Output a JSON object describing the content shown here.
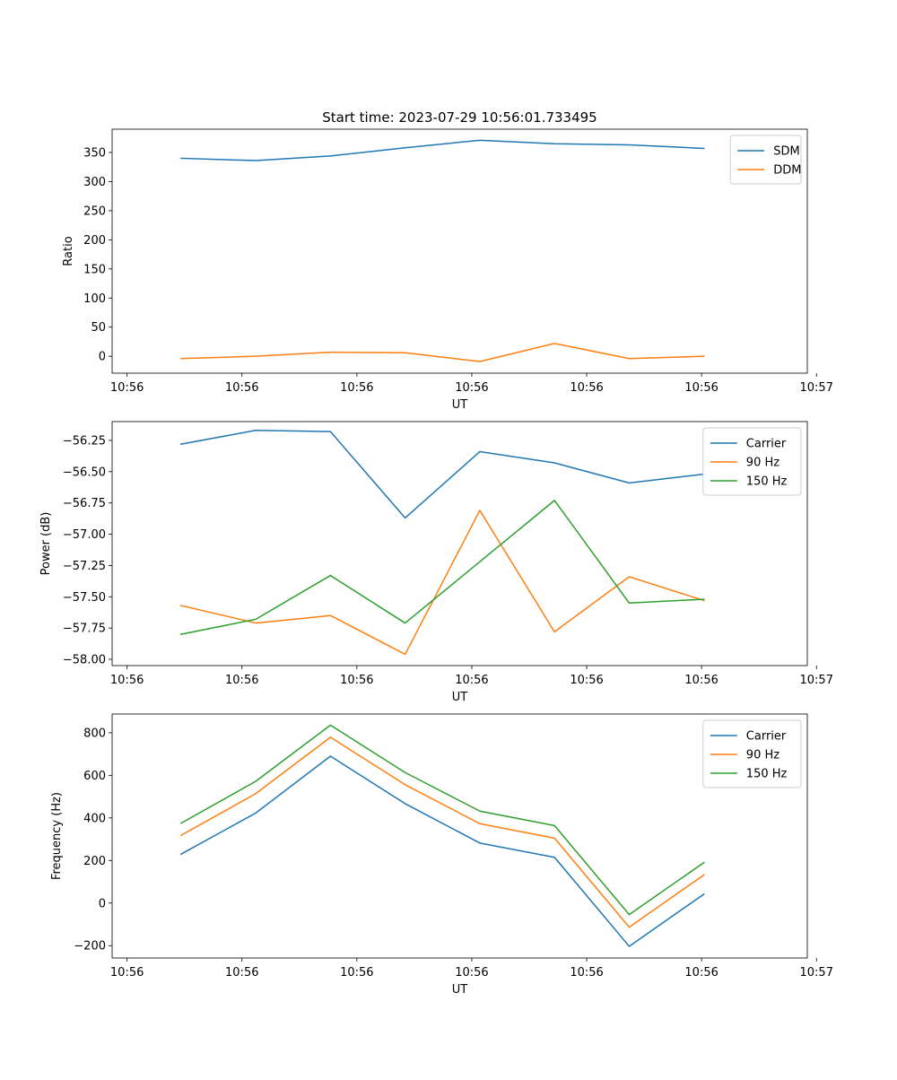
{
  "figure": {
    "title": "Start time: 2023-07-29 10:56:01.733495"
  },
  "colors": {
    "blue": "#1f77b4",
    "orange": "#ff7f0e",
    "green": "#2ca02c"
  },
  "chart_data": [
    {
      "type": "line",
      "title": "Start time: 2023-07-29 10:56:01.733495",
      "xlabel": "UT",
      "ylabel": "Ratio",
      "x": [
        0.85,
        1.5,
        2.15,
        2.8,
        3.45,
        4.1,
        4.75,
        5.4
      ],
      "xlim": [
        0.25,
        6.3
      ],
      "xticks": [
        0.38,
        1.38,
        2.38,
        3.38,
        4.38,
        5.38,
        6.38
      ],
      "xticklabels": [
        "10:56",
        "10:56",
        "10:56",
        "10:56",
        "10:56",
        "10:56",
        "10:57"
      ],
      "ylim": [
        -29,
        390
      ],
      "yticks": [
        0,
        50,
        100,
        150,
        200,
        250,
        300,
        350
      ],
      "yticklabels": [
        "0",
        "50",
        "100",
        "150",
        "200",
        "250",
        "300",
        "350"
      ],
      "legend": "top-right",
      "series": [
        {
          "name": "SDM",
          "color": "#1f77b4",
          "values": [
            340,
            336,
            344,
            358,
            371,
            365,
            363,
            357
          ]
        },
        {
          "name": "DDM",
          "color": "#ff7f0e",
          "values": [
            -4,
            0,
            7,
            6,
            -9,
            22,
            -4,
            0
          ]
        }
      ]
    },
    {
      "type": "line",
      "title": "",
      "xlabel": "UT",
      "ylabel": "Power (dB)",
      "x": [
        0.85,
        1.5,
        2.15,
        2.8,
        3.45,
        4.1,
        4.75,
        5.4
      ],
      "xlim": [
        0.25,
        6.3
      ],
      "xticks": [
        0.38,
        1.38,
        2.38,
        3.38,
        4.38,
        5.38,
        6.38
      ],
      "xticklabels": [
        "10:56",
        "10:56",
        "10:56",
        "10:56",
        "10:56",
        "10:56",
        "10:57"
      ],
      "ylim": [
        -58.05,
        -56.1
      ],
      "yticks": [
        -58.0,
        -57.75,
        -57.5,
        -57.25,
        -57.0,
        -56.75,
        -56.5,
        -56.25
      ],
      "yticklabels": [
        "−58.00",
        "−57.75",
        "−57.50",
        "−57.25",
        "−57.00",
        "−56.75",
        "−56.50",
        "−56.25"
      ],
      "legend": "top-right",
      "series": [
        {
          "name": "Carrier",
          "color": "#1f77b4",
          "values": [
            -56.28,
            -56.17,
            -56.18,
            -56.87,
            -56.34,
            -56.43,
            -56.59,
            -56.52
          ]
        },
        {
          "name": "90 Hz",
          "color": "#ff7f0e",
          "values": [
            -57.57,
            -57.71,
            -57.65,
            -57.96,
            -56.81,
            -57.78,
            -57.34,
            -57.53
          ]
        },
        {
          "name": "150 Hz",
          "color": "#2ca02c",
          "values": [
            -57.8,
            -57.68,
            -57.33,
            -57.71,
            -57.22,
            -56.73,
            -57.55,
            -57.52
          ]
        }
      ]
    },
    {
      "type": "line",
      "title": "",
      "xlabel": "UT",
      "ylabel": "Frequency (Hz)",
      "x": [
        0.85,
        1.5,
        2.15,
        2.8,
        3.45,
        4.1,
        4.75,
        5.4
      ],
      "xlim": [
        0.25,
        6.3
      ],
      "xticks": [
        0.38,
        1.38,
        2.38,
        3.38,
        4.38,
        5.38,
        6.38
      ],
      "xticklabels": [
        "10:56",
        "10:56",
        "10:56",
        "10:56",
        "10:56",
        "10:56",
        "10:57"
      ],
      "ylim": [
        -258,
        888
      ],
      "yticks": [
        -200,
        0,
        200,
        400,
        600,
        800
      ],
      "yticklabels": [
        "−200",
        "0",
        "200",
        "400",
        "600",
        "800"
      ],
      "legend": "top-right",
      "series": [
        {
          "name": "Carrier",
          "color": "#1f77b4",
          "values": [
            230,
            423,
            690,
            467,
            282,
            215,
            -203,
            42
          ]
        },
        {
          "name": "90 Hz",
          "color": "#ff7f0e",
          "values": [
            318,
            514,
            779,
            556,
            373,
            305,
            -113,
            132
          ]
        },
        {
          "name": "150 Hz",
          "color": "#2ca02c",
          "values": [
            375,
            572,
            836,
            613,
            432,
            364,
            -54,
            190
          ]
        }
      ]
    }
  ]
}
